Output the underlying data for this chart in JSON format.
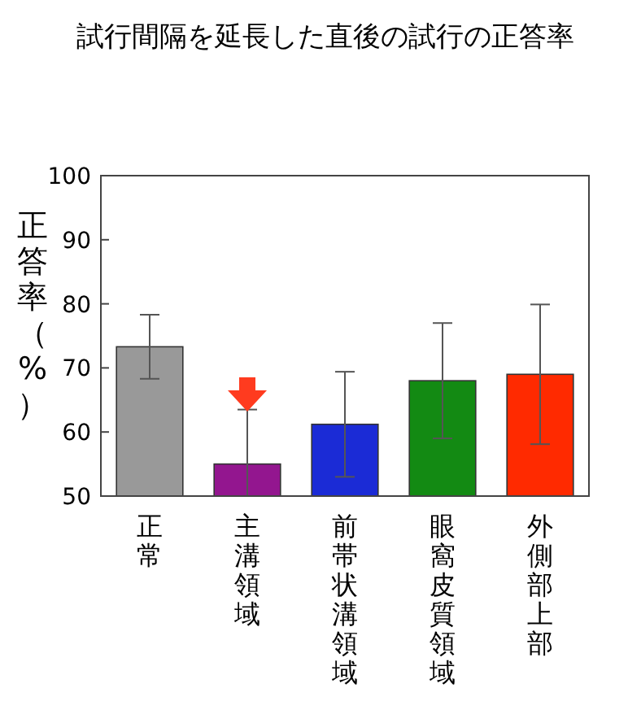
{
  "chart_data": {
    "type": "bar",
    "title": "試行間隔を延長した直後の試行の正答率",
    "ylabel": "正答率（%）",
    "categories": [
      "正常",
      "主溝領域",
      "前帯状溝領域",
      "眼窩皮質領域",
      "外側部上部"
    ],
    "values": [
      73.3,
      55,
      61.2,
      68,
      69
    ],
    "colors": [
      "#999999",
      "#93168f",
      "#1b2bd6",
      "#138a13",
      "#ff2a00"
    ],
    "errors": [
      5,
      [
        50,
        63.5
      ],
      8.2,
      9,
      10.9
    ],
    "ylim": [
      50,
      100
    ],
    "yticks": [
      50,
      60,
      70,
      80,
      90,
      100
    ]
  }
}
